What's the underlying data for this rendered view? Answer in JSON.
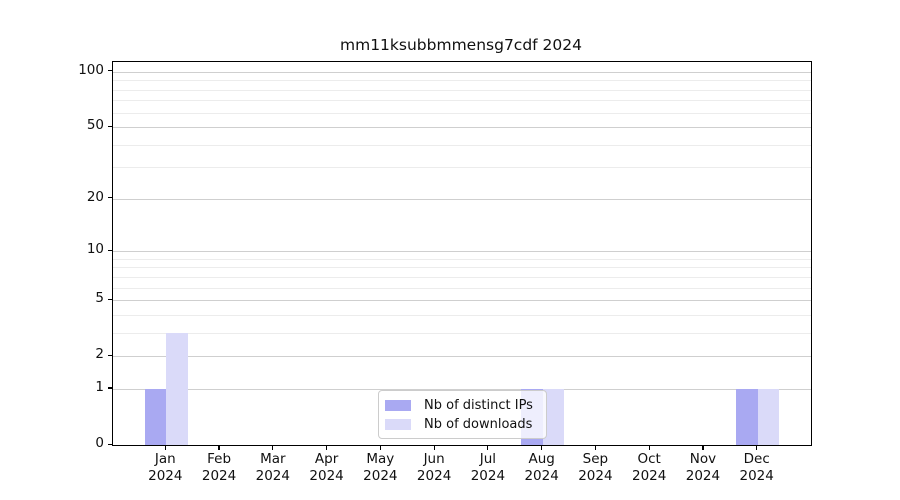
{
  "chart_data": {
    "type": "bar",
    "title": "mm11ksubbmmensg7cdf 2024",
    "xlabel": "",
    "ylabel": "",
    "categories": [
      "Jan",
      "Feb",
      "Mar",
      "Apr",
      "May",
      "Jun",
      "Jul",
      "Aug",
      "Sep",
      "Oct",
      "Nov",
      "Dec"
    ],
    "x_sublabel": "2024",
    "series": [
      {
        "name": "Nb of distinct IPs",
        "color": "#a9a9f2",
        "values": [
          1,
          0,
          0,
          0,
          0,
          0,
          0,
          1,
          0,
          0,
          0,
          1
        ]
      },
      {
        "name": "Nb of downloads",
        "color": "#dadaf9",
        "values": [
          3,
          0,
          0,
          0,
          0,
          0,
          0,
          1,
          0,
          0,
          0,
          1
        ]
      }
    ],
    "y_axis": {
      "scale": "log1p",
      "major_ticks": [
        0,
        1,
        2,
        5,
        10,
        20,
        50,
        100
      ],
      "minor_ticks": [
        3,
        4,
        6,
        7,
        8,
        9,
        30,
        40,
        60,
        70,
        80,
        90
      ],
      "ylim": [
        0,
        113
      ]
    },
    "grid": "on",
    "legend": {
      "position": "lower center",
      "framealpha": 0.8
    }
  },
  "colors": {
    "major_grid": "#cfcfcf",
    "minor_grid": "#ececec",
    "axis": "#000000",
    "text": "#111111",
    "legend_border": "#cccccc"
  }
}
